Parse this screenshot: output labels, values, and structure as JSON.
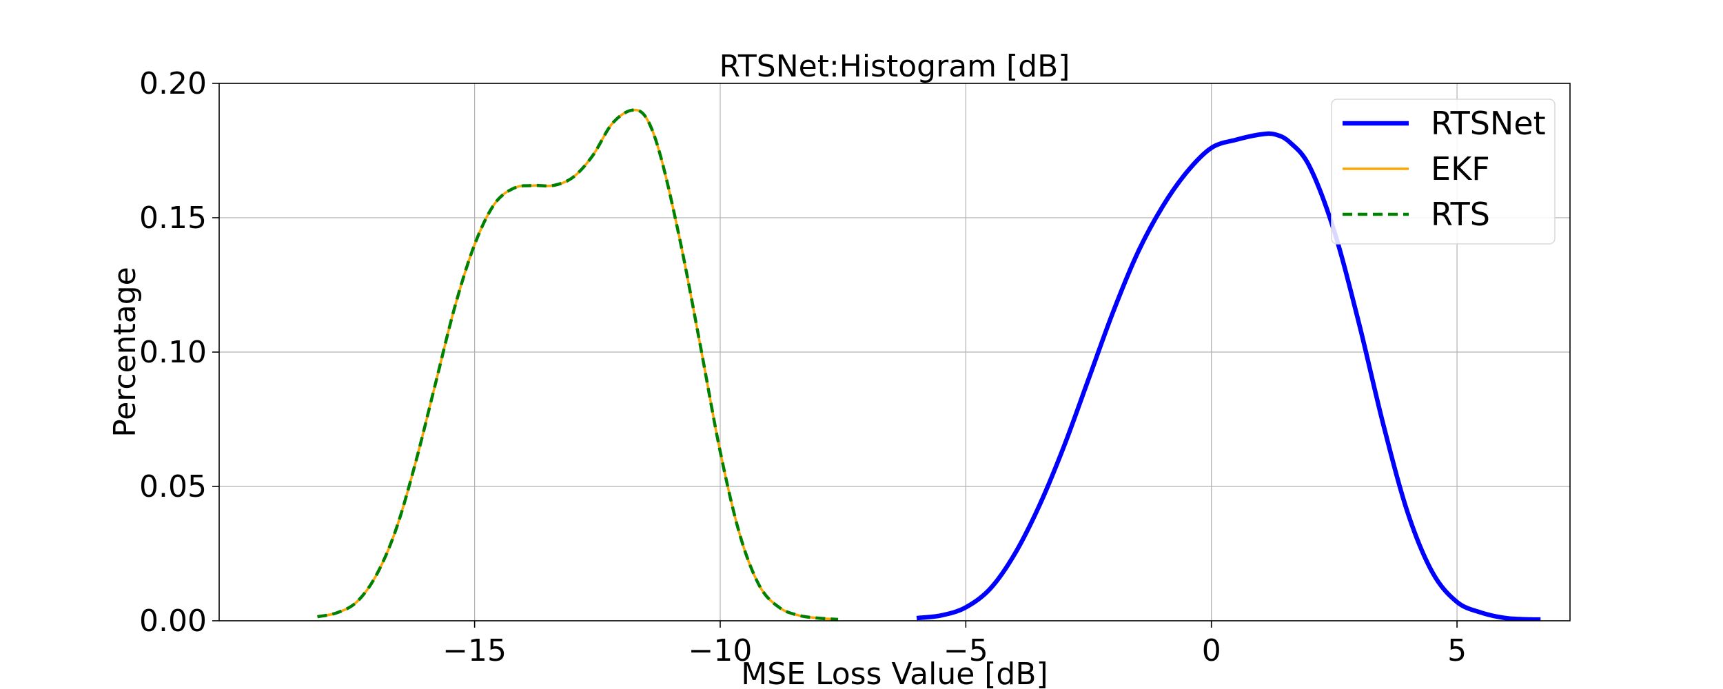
{
  "chart_data": {
    "type": "line",
    "title": "RTSNet:Histogram [dB]",
    "xlabel": "MSE Loss Value [dB]",
    "ylabel": "Percentage",
    "xlim": [
      -20.2,
      7.3
    ],
    "ylim": [
      0.0,
      0.2
    ],
    "x_ticks": [
      -15,
      -10,
      -5,
      0,
      5
    ],
    "x_tick_labels": [
      "−15",
      "−10",
      "−5",
      "0",
      "5"
    ],
    "y_ticks": [
      0.0,
      0.05,
      0.1,
      0.15,
      0.2
    ],
    "y_tick_labels": [
      "0.00",
      "0.05",
      "0.10",
      "0.15",
      "0.20"
    ],
    "grid": true,
    "legend_position": "top-right",
    "series": [
      {
        "name": "RTSNet",
        "color": "#0000ff",
        "style": "solid",
        "x": [
          -6.0,
          -5.5,
          -5.0,
          -4.5,
          -4.0,
          -3.5,
          -3.0,
          -2.5,
          -2.0,
          -1.5,
          -1.0,
          -0.5,
          0.0,
          0.5,
          1.0,
          1.3,
          1.6,
          2.0,
          2.5,
          3.0,
          3.5,
          4.0,
          4.5,
          5.0,
          5.5,
          6.0,
          6.5,
          6.7
        ],
        "y": [
          0.001,
          0.002,
          0.005,
          0.012,
          0.025,
          0.043,
          0.065,
          0.09,
          0.115,
          0.137,
          0.154,
          0.167,
          0.176,
          0.179,
          0.181,
          0.181,
          0.178,
          0.169,
          0.145,
          0.111,
          0.073,
          0.04,
          0.018,
          0.007,
          0.003,
          0.001,
          0.0005,
          0.0005
        ]
      },
      {
        "name": "EKF",
        "color": "#ffa500",
        "style": "solid",
        "x": [
          -18.2,
          -17.8,
          -17.4,
          -17.0,
          -16.6,
          -16.2,
          -15.8,
          -15.4,
          -15.0,
          -14.6,
          -14.2,
          -13.8,
          -13.4,
          -13.0,
          -12.6,
          -12.2,
          -11.8,
          -11.5,
          -11.2,
          -10.8,
          -10.4,
          -10.0,
          -9.6,
          -9.2,
          -8.8,
          -8.4,
          -8.0,
          -7.6
        ],
        "y": [
          0.0015,
          0.003,
          0.007,
          0.017,
          0.034,
          0.059,
          0.088,
          0.117,
          0.14,
          0.155,
          0.161,
          0.162,
          0.162,
          0.165,
          0.173,
          0.185,
          0.19,
          0.187,
          0.172,
          0.14,
          0.102,
          0.063,
          0.032,
          0.013,
          0.005,
          0.002,
          0.001,
          0.0005
        ]
      },
      {
        "name": "RTS",
        "color": "#008000",
        "style": "dashed",
        "x": [
          -18.2,
          -17.8,
          -17.4,
          -17.0,
          -16.6,
          -16.2,
          -15.8,
          -15.4,
          -15.0,
          -14.6,
          -14.2,
          -13.8,
          -13.4,
          -13.0,
          -12.6,
          -12.2,
          -11.8,
          -11.5,
          -11.2,
          -10.8,
          -10.4,
          -10.0,
          -9.6,
          -9.2,
          -8.8,
          -8.4,
          -8.0,
          -7.6
        ],
        "y": [
          0.0015,
          0.003,
          0.007,
          0.017,
          0.034,
          0.059,
          0.088,
          0.117,
          0.14,
          0.155,
          0.161,
          0.162,
          0.162,
          0.165,
          0.173,
          0.185,
          0.19,
          0.187,
          0.172,
          0.14,
          0.102,
          0.063,
          0.032,
          0.013,
          0.005,
          0.002,
          0.001,
          0.0005
        ]
      }
    ]
  }
}
